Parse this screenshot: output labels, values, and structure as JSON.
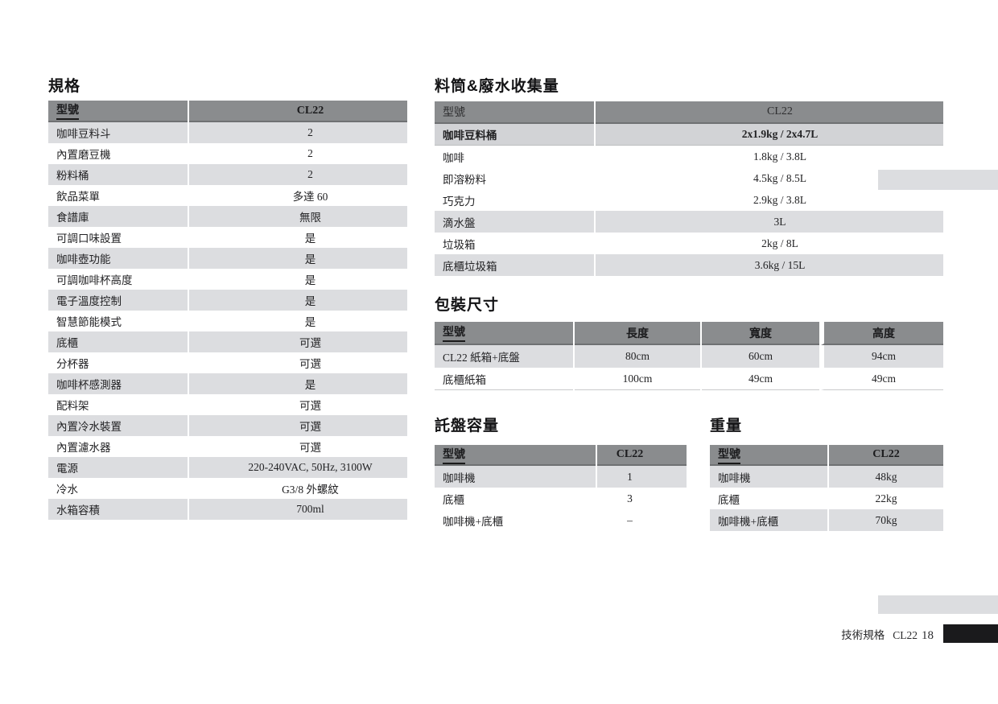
{
  "colors": {
    "table_header_bg": "#8a8c8e",
    "row_shaded_bg": "#dcdde0",
    "highlight_row_bg": "#d2d3d6",
    "footer_tab_black": "#1a1a1c",
    "margin_bar_gray": "#dcdde0"
  },
  "spec_table": {
    "title": "規格",
    "header": [
      "型號",
      "CL22"
    ],
    "rows": [
      {
        "label": "咖啡豆料斗",
        "value": "2",
        "shaded": true
      },
      {
        "label": "內置磨豆機",
        "value": "2",
        "shaded": false
      },
      {
        "label": "粉料桶",
        "value": "2",
        "shaded": true
      },
      {
        "label": "飲品菜單",
        "value": "多達 60",
        "shaded": false
      },
      {
        "label": "食譜庫",
        "value": "無限",
        "shaded": true
      },
      {
        "label": "可調口味設置",
        "value": "是",
        "shaded": false
      },
      {
        "label": "咖啡壺功能",
        "value": "是",
        "shaded": true
      },
      {
        "label": "可調咖啡杯高度",
        "value": "是",
        "shaded": false
      },
      {
        "label": "電子溫度控制",
        "value": "是",
        "shaded": true
      },
      {
        "label": "智慧節能模式",
        "value": "是",
        "shaded": false
      },
      {
        "label": "底櫃",
        "value": "可選",
        "shaded": true
      },
      {
        "label": "分杯器",
        "value": "可選",
        "shaded": false
      },
      {
        "label": "咖啡杯感測器",
        "value": "是",
        "shaded": true
      },
      {
        "label": "配料架",
        "value": "可選",
        "shaded": false
      },
      {
        "label": "內置冷水裝置",
        "value": "可選",
        "shaded": true
      },
      {
        "label": "內置濾水器",
        "value": "可選",
        "shaded": false
      },
      {
        "label": "電源",
        "value": "220-240VAC, 50Hz, 3100W",
        "shaded": true
      },
      {
        "label": "冷水",
        "value": "G3/8 外螺紋",
        "shaded": false
      },
      {
        "label": "水箱容積",
        "value": "700ml",
        "shaded": true
      }
    ]
  },
  "hopper_table": {
    "title": "料筒&廢水收集量",
    "header": [
      "型號",
      "CL22"
    ],
    "rows": [
      {
        "label": "咖啡豆料桶",
        "value": "2x1.9kg / 2x4.7L",
        "shaded": true,
        "bold": true
      },
      {
        "label": "咖啡",
        "value": "1.8kg / 3.8L",
        "shaded": false
      },
      {
        "label": "即溶粉料",
        "value": "4.5kg / 8.5L",
        "shaded": false
      },
      {
        "label": "巧克力",
        "value": "2.9kg / 3.8L",
        "shaded": false
      },
      {
        "label": "滴水盤",
        "value": "3L",
        "shaded": true
      },
      {
        "label": "垃圾箱",
        "value": "2kg / 8L",
        "shaded": false
      },
      {
        "label": "底櫃垃圾箱",
        "value": "3.6kg / 15L",
        "shaded": true
      }
    ]
  },
  "packaging_table": {
    "title": "包裝尺寸",
    "header": [
      "型號",
      "長度",
      "寬度",
      "高度"
    ],
    "rows": [
      {
        "cells": [
          "CL22 紙箱+底盤",
          "80cm",
          "60cm",
          "94cm"
        ],
        "shaded": true
      },
      {
        "cells": [
          "底櫃紙箱",
          "100cm",
          "49cm",
          "49cm"
        ],
        "shaded": false
      }
    ]
  },
  "tray_table": {
    "title": "託盤容量",
    "header": [
      "型號",
      "CL22"
    ],
    "rows": [
      {
        "label": "咖啡機",
        "value": "1",
        "shaded": true
      },
      {
        "label": "底櫃",
        "value": "3",
        "shaded": false
      },
      {
        "label": "咖啡機+底櫃",
        "value": "–",
        "shaded": false
      }
    ]
  },
  "weight_table": {
    "title": "重量",
    "header": [
      "型號",
      "CL22"
    ],
    "rows": [
      {
        "label": "咖啡機",
        "value": "48kg",
        "shaded": true
      },
      {
        "label": "底櫃",
        "value": "22kg",
        "shaded": false
      },
      {
        "label": "咖啡機+底櫃",
        "value": "70kg",
        "shaded": true
      }
    ]
  },
  "footer": {
    "label": "技術規格",
    "model": "CL22",
    "page_number": "18"
  }
}
